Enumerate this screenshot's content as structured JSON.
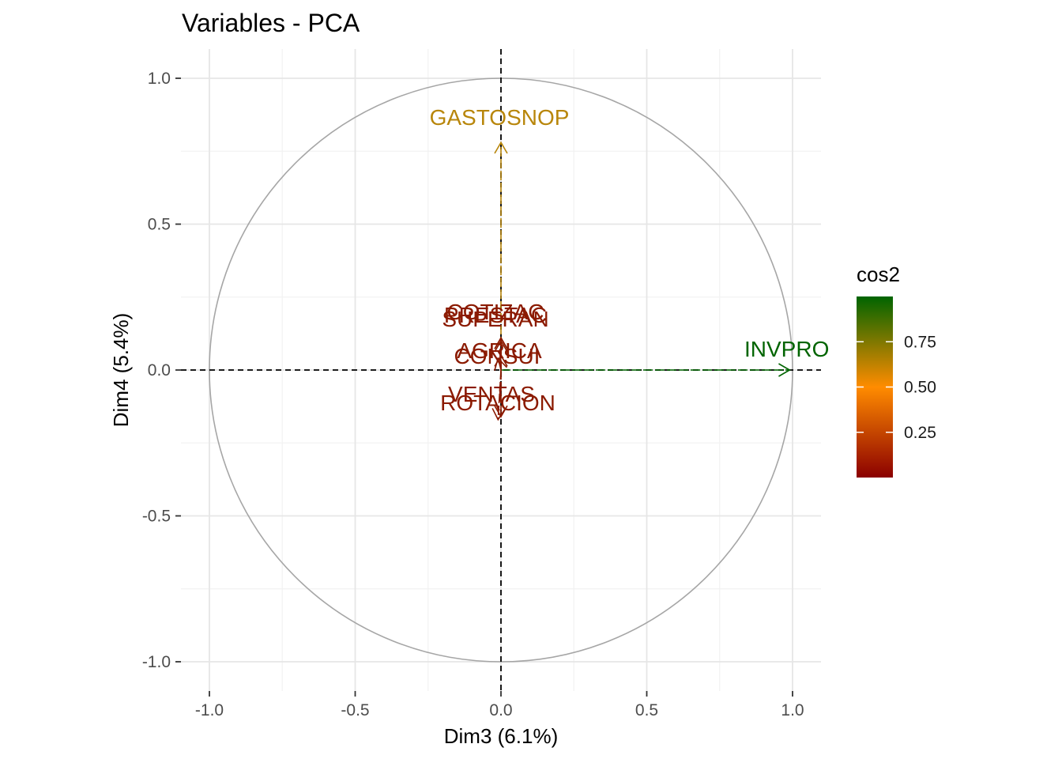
{
  "chart_data": {
    "type": "scatter",
    "subtype": "pca-variable-correlation-circle",
    "title": "Variables - PCA",
    "xlabel": "Dim3 (6.1%)",
    "ylabel": "Dim4 (5.4%)",
    "xlim": [
      -1.0,
      1.0
    ],
    "ylim": [
      -1.0,
      1.0
    ],
    "x_ticks": [
      -1.0,
      -0.5,
      0.0,
      0.5,
      1.0
    ],
    "y_ticks": [
      -1.0,
      -0.5,
      0.0,
      0.5,
      1.0
    ],
    "x_tick_labels": [
      "-1.0",
      "-0.5",
      "0.0",
      "0.5",
      "1.0"
    ],
    "y_tick_labels": [
      "-1.0",
      "-0.5",
      "0.0",
      "0.5",
      "1.0"
    ],
    "grid": true,
    "unit_circle": true,
    "reference_lines": {
      "x": 0,
      "y": 0,
      "style": "dashed"
    },
    "variables": [
      {
        "name": "GASTOSNOP",
        "x": 0.0,
        "y": 0.78,
        "cos2": 0.62,
        "color": "#B8860B"
      },
      {
        "name": "INVPRO",
        "x": 0.99,
        "y": 0.0,
        "cos2": 0.98,
        "color": "#006400"
      },
      {
        "name": "COTIZA",
        "x": 0.0,
        "y": 0.11,
        "cos2": 0.02,
        "color": "#8B1A00"
      },
      {
        "name": "SUPERAN",
        "x": 0.0,
        "y": 0.1,
        "cos2": 0.02,
        "color": "#8B1A00"
      },
      {
        "name": "PRESTAC",
        "x": 0.0,
        "y": 0.11,
        "cos2": 0.02,
        "color": "#8B1A00"
      },
      {
        "name": "AGRICA",
        "x": 0.0,
        "y": 0.05,
        "cos2": 0.01,
        "color": "#8B1A00"
      },
      {
        "name": "CONSUI",
        "x": -0.01,
        "y": 0.04,
        "cos2": 0.01,
        "color": "#8B1A00"
      },
      {
        "name": "VENTAS",
        "x": 0.0,
        "y": -0.16,
        "cos2": 0.03,
        "color": "#8B1A00"
      },
      {
        "name": "ROTACION",
        "x": -0.01,
        "y": -0.17,
        "cos2": 0.03,
        "color": "#8B1A00"
      }
    ],
    "labels_as_drawn": [
      {
        "text": "GASTOSNOP"
      },
      {
        "text": "INVPRO"
      },
      {
        "text": "COTIZAC"
      },
      {
        "text": "PRESTAC"
      },
      {
        "text": "SUPERAN"
      },
      {
        "text": "AGRICA"
      },
      {
        "text": "CONSUI"
      },
      {
        "text": "VENTAS"
      },
      {
        "text": "ROTACION"
      }
    ],
    "legend": {
      "title": "cos2",
      "type": "colorbar",
      "position": "right",
      "ticks": [
        0.25,
        0.5,
        0.75
      ],
      "tick_labels": [
        "0.25",
        "0.50",
        "0.75"
      ],
      "range": [
        0.0,
        1.0
      ],
      "colors": {
        "low": "#8B0000",
        "mid": "#FF8C00",
        "high": "#006400"
      }
    }
  }
}
